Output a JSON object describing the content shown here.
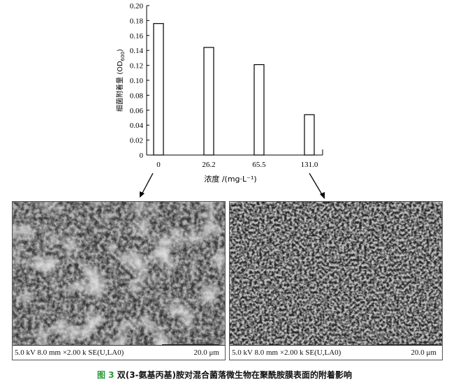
{
  "chart_data": {
    "type": "bar",
    "categories": [
      "0",
      "26.2",
      "65.5",
      "131.0"
    ],
    "values": [
      0.176,
      0.144,
      0.121,
      0.054
    ],
    "xlabel": "浓度 /(mg·L⁻¹)",
    "ylabel": "细菌附着量 (OD600)",
    "ylabel_main": "细菌附着量 (OD",
    "ylabel_sub": "600",
    "ylabel_end": ")",
    "ylim": [
      0,
      0.2
    ],
    "yticks": [
      "0",
      "0.02",
      "0.04",
      "0.06",
      "0.08",
      "0.10",
      "0.12",
      "0.14",
      "0.16",
      "0.18",
      "0.20"
    ],
    "bar_fill": "#ffffff",
    "grid": false
  },
  "sem_images": [
    {
      "info": "5.0 kV 8.0 mm ×2.00 k SE(U,LA0)",
      "scale": "20.0 μm"
    },
    {
      "info": "5.0 kV 8.0 mm ×2.00 k SE(U,LA0)",
      "scale": "20.0 μm"
    }
  ],
  "caption": {
    "figure_label": "图 3",
    "text": "双(3-氨基丙基)胺对混合菌落微生物在聚酰胺膜表面的附着影响",
    "label_color": "#2a9a3a"
  }
}
